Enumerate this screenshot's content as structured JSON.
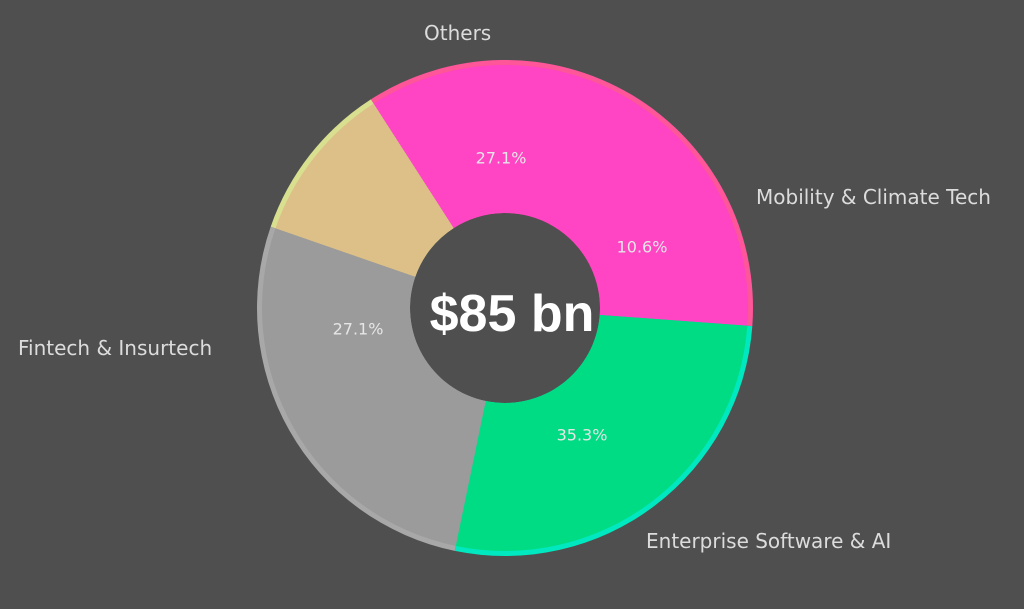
{
  "chart_data": {
    "type": "pie",
    "variant": "donut",
    "title": "",
    "center_label": "$85 bn",
    "categories": [
      "Enterprise Software & AI",
      "Mobility & Climate Tech",
      "Others",
      "Fintech & Insurtech"
    ],
    "values": [
      35.3,
      10.6,
      27.1,
      27.1
    ],
    "value_labels": [
      "35.3%",
      "10.6%",
      "27.1%",
      "27.1%"
    ],
    "colors": [
      "#ff44c4",
      "#dcc088",
      "#9b9b9b",
      "#00dc84"
    ],
    "edge_colors": [
      "#ff5599",
      "#d8e090",
      "#a8a8a8",
      "#00e8c0"
    ],
    "legend": "none (labels placed outside slices)"
  },
  "labels": {
    "enterprise": "Enterprise Software & AI",
    "mobility": "Mobility & Climate Tech",
    "others": "Others",
    "fintech": "Fintech & Insurtech"
  },
  "pcts": {
    "enterprise": "35.3%",
    "mobility": "10.6%",
    "others": "27.1%",
    "fintech": "27.1%"
  },
  "center": "$85 bn"
}
